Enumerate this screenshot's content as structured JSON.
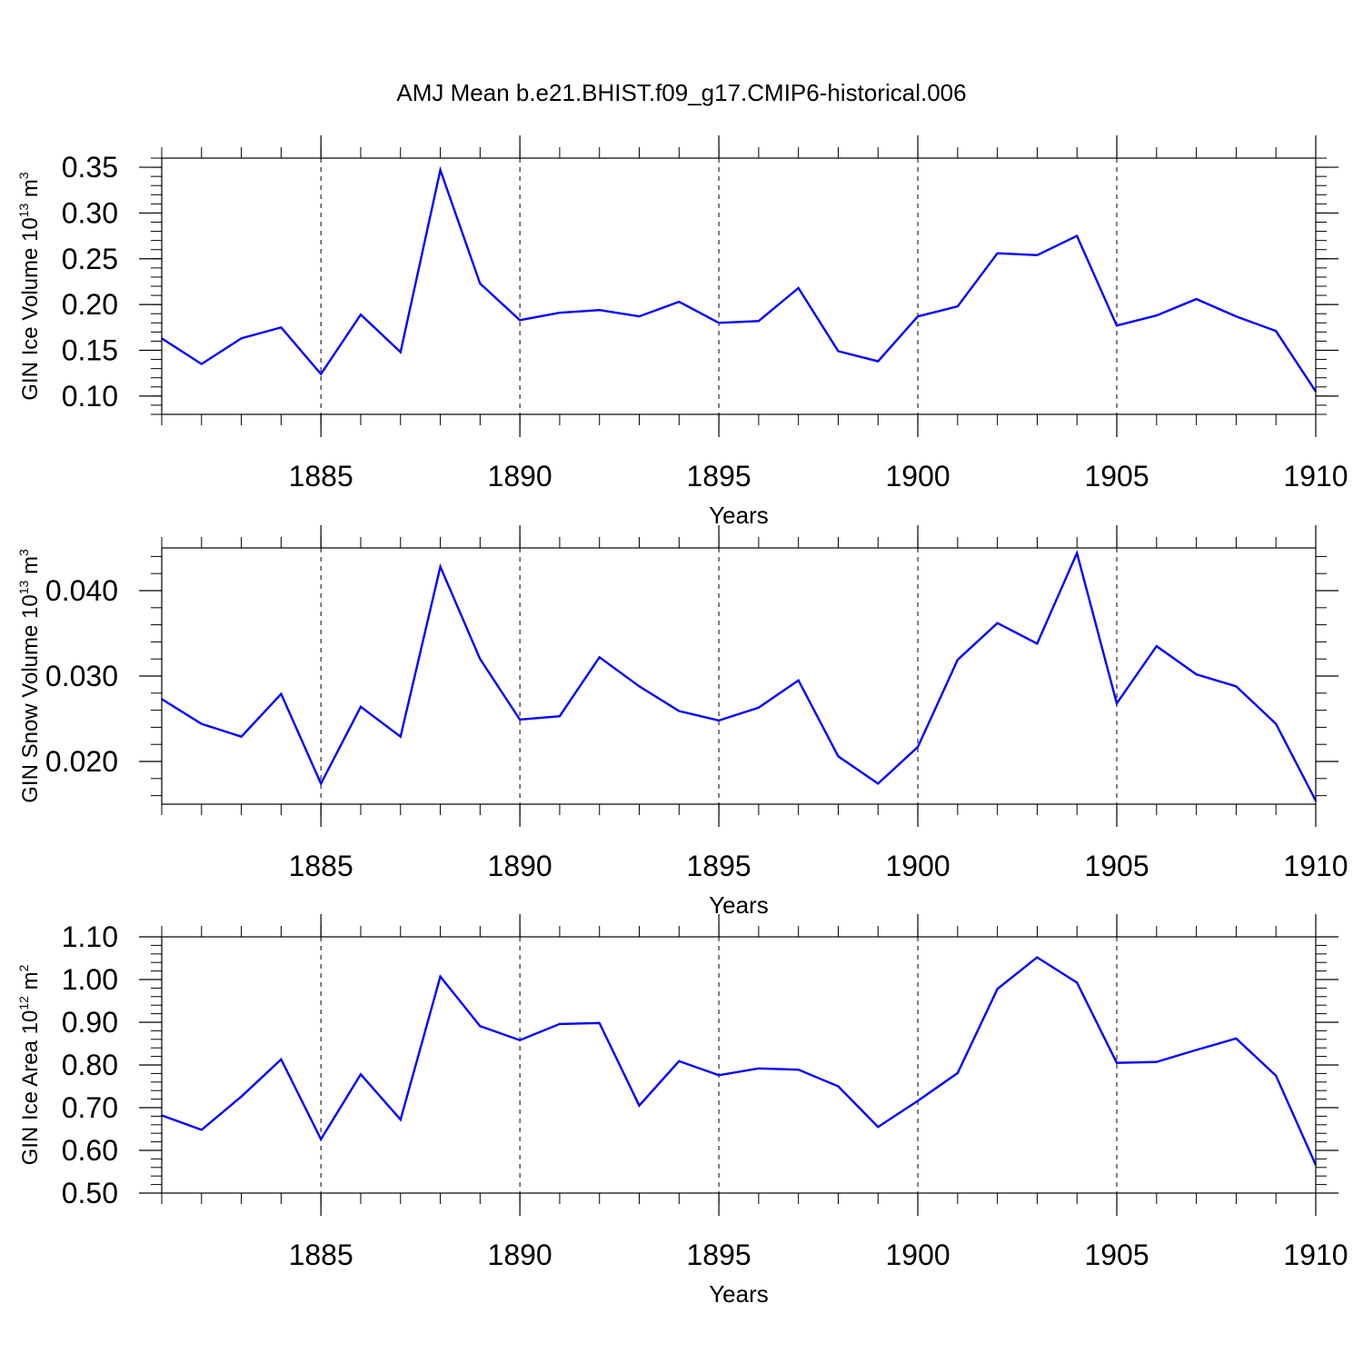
{
  "title": "AMJ Mean b.e21.BHIST.f09_g17.CMIP6-historical.006",
  "chart_data": [
    {
      "type": "line",
      "ylabel": {
        "text": "GIN Ice Volume 10",
        "exp": "13",
        "unit": " m",
        "unit_exp": "3"
      },
      "xlabel": "Years",
      "xlim": [
        1881,
        1910
      ],
      "ylim": [
        0.08,
        0.36
      ],
      "x_ticks": [
        "1885",
        "1890",
        "1895",
        "1900",
        "1905",
        "1910"
      ],
      "y_ticks": [
        "0.10",
        "0.15",
        "0.20",
        "0.25",
        "0.30",
        "0.35"
      ],
      "x": [
        1881,
        1882,
        1883,
        1884,
        1885,
        1886,
        1887,
        1888,
        1889,
        1890,
        1891,
        1892,
        1893,
        1894,
        1895,
        1896,
        1897,
        1898,
        1899,
        1900,
        1901,
        1902,
        1903,
        1904,
        1905,
        1906,
        1907,
        1908,
        1909,
        1910
      ],
      "values": [
        0.163,
        0.135,
        0.163,
        0.175,
        0.124,
        0.189,
        0.148,
        0.347,
        0.223,
        0.183,
        0.191,
        0.194,
        0.187,
        0.203,
        0.18,
        0.182,
        0.218,
        0.149,
        0.138,
        0.187,
        0.198,
        0.256,
        0.254,
        0.275,
        0.177,
        0.188,
        0.206,
        0.187,
        0.171,
        0.105
      ],
      "line_color": "#0000ff",
      "grid": "dashed vertical at major x ticks"
    },
    {
      "type": "line",
      "ylabel": {
        "text": "GIN Snow Volume 10",
        "exp": "13",
        "unit": " m",
        "unit_exp": "3"
      },
      "xlabel": "Years",
      "xlim": [
        1881,
        1910
      ],
      "ylim": [
        0.015,
        0.045
      ],
      "x_ticks": [
        "1885",
        "1890",
        "1895",
        "1900",
        "1905",
        "1910"
      ],
      "y_ticks": [
        "0.020",
        "0.030",
        "0.040"
      ],
      "x": [
        1881,
        1882,
        1883,
        1884,
        1885,
        1886,
        1887,
        1888,
        1889,
        1890,
        1891,
        1892,
        1893,
        1894,
        1895,
        1896,
        1897,
        1898,
        1899,
        1900,
        1901,
        1902,
        1903,
        1904,
        1905,
        1906,
        1907,
        1908,
        1909,
        1910
      ],
      "values": [
        0.0273,
        0.0244,
        0.0229,
        0.0279,
        0.0174,
        0.0264,
        0.0229,
        0.0428,
        0.032,
        0.0249,
        0.0253,
        0.0322,
        0.0288,
        0.0259,
        0.0248,
        0.0263,
        0.0295,
        0.0206,
        0.0174,
        0.0217,
        0.0319,
        0.0362,
        0.0338,
        0.0444,
        0.0268,
        0.0335,
        0.0302,
        0.0288,
        0.0244,
        0.0154
      ],
      "line_color": "#0000ff",
      "grid": "dashed vertical at major x ticks"
    },
    {
      "type": "line",
      "ylabel": {
        "text": "GIN Ice Area 10",
        "exp": "12",
        "unit": " m",
        "unit_exp": "2"
      },
      "xlabel": "Years",
      "xlim": [
        1881,
        1910
      ],
      "ylim": [
        0.5,
        1.1
      ],
      "x_ticks": [
        "1885",
        "1890",
        "1895",
        "1900",
        "1905",
        "1910"
      ],
      "y_ticks": [
        "0.50",
        "0.60",
        "0.70",
        "0.80",
        "0.90",
        "1.00",
        "1.10"
      ],
      "x": [
        1881,
        1882,
        1883,
        1884,
        1885,
        1886,
        1887,
        1888,
        1889,
        1890,
        1891,
        1892,
        1893,
        1894,
        1895,
        1896,
        1897,
        1898,
        1899,
        1900,
        1901,
        1902,
        1903,
        1904,
        1905,
        1906,
        1907,
        1908,
        1909,
        1910
      ],
      "values": [
        0.682,
        0.648,
        0.726,
        0.813,
        0.626,
        0.778,
        0.672,
        1.007,
        0.891,
        0.858,
        0.896,
        0.898,
        0.705,
        0.809,
        0.776,
        0.792,
        0.789,
        0.75,
        0.655,
        0.716,
        0.781,
        0.978,
        1.052,
        0.993,
        0.805,
        0.807,
        0.835,
        0.862,
        0.775,
        0.566
      ],
      "line_color": "#0000ff",
      "grid": "dashed vertical at major x ticks"
    }
  ]
}
